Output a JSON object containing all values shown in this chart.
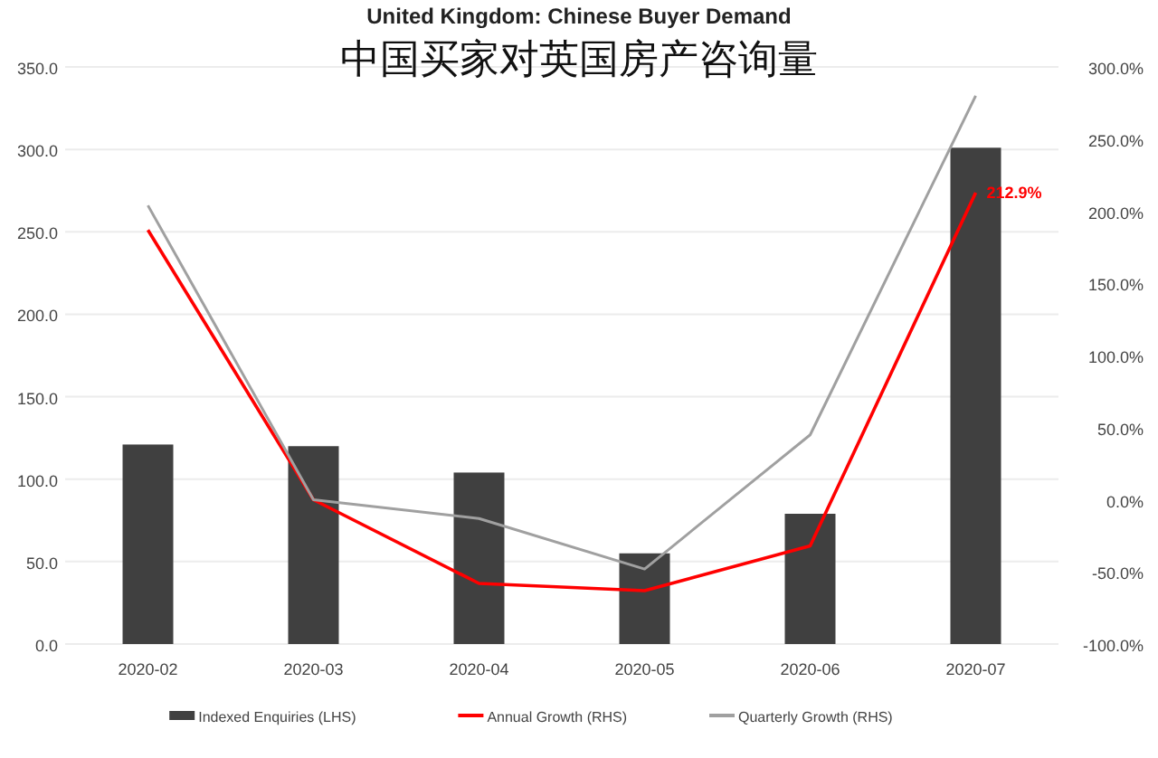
{
  "chart_data": {
    "type": "bar",
    "title": "United Kingdom: Chinese Buyer Demand",
    "subtitle": "中国买家对英国房产咨询量",
    "categories": [
      "2020-02",
      "2020-03",
      "2020-04",
      "2020-05",
      "2020-06",
      "2020-07"
    ],
    "series": [
      {
        "name": "Indexed Enquiries (LHS)",
        "color": "#404040",
        "values": [
          121,
          120,
          104,
          55,
          79,
          301
        ]
      },
      {
        "name": "Annual Growth (RHS)",
        "type": "line",
        "axis": "y2",
        "color": "#ff0000",
        "values": [
          187,
          0,
          -58,
          -63,
          -32,
          212.9
        ],
        "value_labels": [
          null,
          null,
          null,
          null,
          null,
          "212.9%"
        ]
      },
      {
        "name": "Quarterly Growth (RHS)",
        "type": "line",
        "axis": "y2",
        "color": "#a0a0a0",
        "values": [
          204,
          0,
          -13,
          -48,
          45,
          280
        ]
      }
    ],
    "ylim": [
      0,
      350
    ],
    "yticks": [
      {
        "value": 0,
        "label": "0.0"
      },
      {
        "value": 50,
        "label": "50.0"
      },
      {
        "value": 100,
        "label": "100.0"
      },
      {
        "value": 150,
        "label": "150.0"
      },
      {
        "value": 200,
        "label": "200.0"
      },
      {
        "value": 250,
        "label": "250.0"
      },
      {
        "value": 300,
        "label": "300.0"
      },
      {
        "value": 350,
        "label": "350.0"
      }
    ],
    "y2lim": [
      -100,
      300
    ],
    "y2ticks": [
      {
        "value": -100,
        "label": "-100.0%"
      },
      {
        "value": -50,
        "label": "-50.0%"
      },
      {
        "value": 0,
        "label": "0.0%"
      },
      {
        "value": 50,
        "label": "50.0%"
      },
      {
        "value": 100,
        "label": "100.0%"
      },
      {
        "value": 150,
        "label": "150.0%"
      },
      {
        "value": 200,
        "label": "200.0%"
      },
      {
        "value": 250,
        "label": "250.0%"
      },
      {
        "value": 300,
        "label": "300.0%"
      }
    ],
    "grid": "y",
    "legend": "bottom",
    "marker": "none",
    "line_style": "solid"
  }
}
